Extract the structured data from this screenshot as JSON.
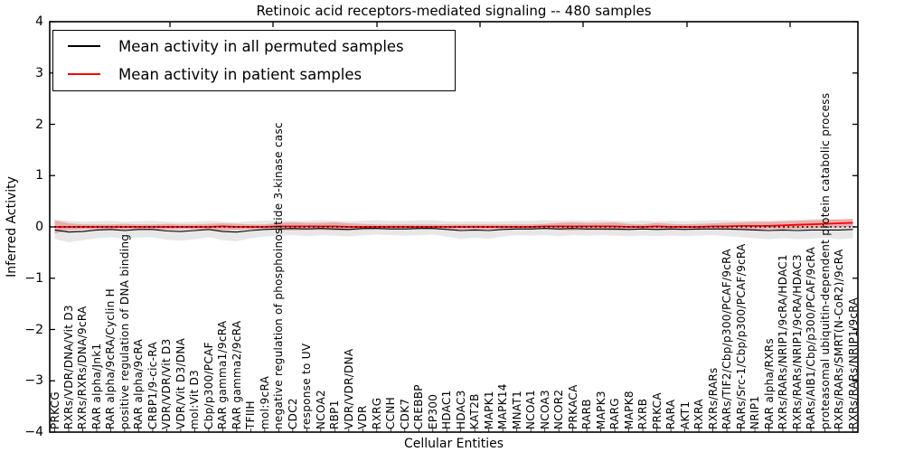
{
  "figure": {
    "title": "Retinoic acid receptors-mediated signaling -- 480 samples",
    "xlabel": "Cellular Entities",
    "ylabel": "Inferred Activity"
  },
  "legend": {
    "entries": [
      {
        "label": "Mean activity in all permuted samples",
        "color": "#000000"
      },
      {
        "label": "Mean activity in patient samples",
        "color": "#ff0000"
      }
    ]
  },
  "chart_data": {
    "type": "line",
    "title": "Retinoic acid receptors-mediated signaling -- 480 samples",
    "xlabel": "Cellular Entities",
    "ylabel": "Inferred Activity",
    "ylim": [
      -4,
      4
    ],
    "yticks": [
      4,
      3,
      2,
      1,
      0,
      -1,
      -2,
      -3,
      -4
    ],
    "yticklabels": [
      "4",
      "3",
      "2",
      "1",
      "0",
      "−1",
      "−2",
      "−3",
      "−4"
    ],
    "grid": false,
    "legend_position": "upper left",
    "reference_line": {
      "y": 0,
      "style": "dotted",
      "color": "#000000"
    },
    "categories": [
      "PRKCG",
      "RXRs/VDR/DNA/Vit D3",
      "RXRs/RXRs/DNA/9cRA",
      "RAR alpha/Jnk1",
      "RAR alpha/9cRA/Cyclin H",
      "positive regulation of DNA binding",
      "RAR alpha/9cRA",
      "CRBP1/9-cic-RA",
      "VDR/VDR/Vit D3",
      "VDR/Vit D3/DNA",
      "mol:Vit D3",
      "Cbp/p300/PCAF",
      "RAR gamma1/9cRA",
      "RAR gamma2/9cRA",
      "TFIIH",
      "mol:9cRA",
      "negative regulation of phosphoinositide 3-kinase casc",
      "CDC2",
      "response to UV",
      "NCOA2",
      "RBP1",
      "VDR/VDR/DNA",
      "VDR",
      "RXRG",
      "CCNH",
      "CDK7",
      "CREBBP",
      "EP300",
      "HDAC1",
      "HDAC3",
      "KAT2B",
      "MAPK1",
      "MAPK14",
      "MNAT1",
      "NCOA1",
      "NCOA3",
      "NCOR2",
      "PRKACA",
      "RARB",
      "MAPK3",
      "RARG",
      "MAPK8",
      "RXRB",
      "PRKCA",
      "RARA",
      "AKT1",
      "RXRA",
      "RXRs/RARs",
      "RARs/TIF2/Cbp/p300/PCAF/9cRA",
      "RARs/Src-1/Cbp/p300/PCAF/9cRA",
      "NRIP1",
      "RAR alpha/RXRs",
      "RXRs/RARs/NRIP1/9cRA/HDAC1",
      "RXRs/RARs/NRIP1/9cRA/HDAC3",
      "RARs/AIB1/Cbp/p300/PCAF/9cRA",
      "proteasomal ubiquitin-dependent protein catabolic process",
      "RXRs/RARs/SMRT(N-CoR2)/9cRA",
      "RXRs/RARs/NRIP1/9cRA"
    ],
    "series": [
      {
        "name": "Mean activity in all permuted samples",
        "color": "#000000",
        "style": "solid",
        "values": [
          -0.06,
          -0.1,
          -0.09,
          -0.06,
          -0.05,
          -0.07,
          -0.05,
          -0.05,
          -0.08,
          -0.09,
          -0.07,
          -0.05,
          -0.09,
          -0.1,
          -0.07,
          -0.05,
          -0.04,
          -0.03,
          -0.04,
          -0.03,
          -0.04,
          -0.05,
          -0.03,
          -0.03,
          -0.04,
          -0.04,
          -0.03,
          -0.03,
          -0.05,
          -0.07,
          -0.06,
          -0.07,
          -0.05,
          -0.04,
          -0.04,
          -0.03,
          -0.04,
          -0.03,
          -0.04,
          -0.04,
          -0.04,
          -0.05,
          -0.04,
          -0.05,
          -0.04,
          -0.05,
          -0.04,
          -0.04,
          -0.04,
          -0.05,
          -0.06,
          -0.07,
          -0.06,
          -0.07,
          -0.06,
          -0.06,
          -0.06,
          -0.05
        ]
      },
      {
        "name": "Mean activity in patient samples",
        "color": "#ff0000",
        "style": "solid",
        "values": [
          0.0,
          0.0,
          0.0,
          0.0,
          0.0,
          0.0,
          0.0,
          0.0,
          0.0,
          0.0,
          0.0,
          0.0,
          0.01,
          0.0,
          0.0,
          0.0,
          0.01,
          0.01,
          0.01,
          0.01,
          0.01,
          0.0,
          0.0,
          0.0,
          0.0,
          0.0,
          0.0,
          0.0,
          0.0,
          0.0,
          0.0,
          0.0,
          0.0,
          0.0,
          0.0,
          0.01,
          0.01,
          0.01,
          0.01,
          0.01,
          0.01,
          0.0,
          0.0,
          0.01,
          0.0,
          0.0,
          0.0,
          0.01,
          0.01,
          0.02,
          0.02,
          0.02,
          0.03,
          0.04,
          0.05,
          0.06,
          0.07,
          0.08
        ]
      }
    ],
    "bands": [
      {
        "name": "permuted samples spread",
        "color": "#aaaaaa",
        "upper": [
          0.14,
          0.12,
          0.1,
          0.11,
          0.12,
          0.1,
          0.11,
          0.12,
          0.1,
          0.09,
          0.1,
          0.12,
          0.1,
          0.09,
          0.11,
          0.12,
          0.13,
          0.12,
          0.12,
          0.13,
          0.12,
          0.11,
          0.12,
          0.13,
          0.12,
          0.12,
          0.13,
          0.13,
          0.11,
          0.1,
          0.11,
          0.1,
          0.11,
          0.12,
          0.12,
          0.13,
          0.12,
          0.13,
          0.12,
          0.13,
          0.12,
          0.11,
          0.12,
          0.11,
          0.12,
          0.11,
          0.12,
          0.13,
          0.13,
          0.12,
          0.12,
          0.11,
          0.13,
          0.14,
          0.15,
          0.16,
          0.14,
          0.13
        ],
        "lower": [
          -0.24,
          -0.3,
          -0.26,
          -0.22,
          -0.2,
          -0.23,
          -0.21,
          -0.2,
          -0.25,
          -0.27,
          -0.24,
          -0.2,
          -0.26,
          -0.28,
          -0.22,
          -0.19,
          -0.17,
          -0.16,
          -0.18,
          -0.16,
          -0.17,
          -0.19,
          -0.16,
          -0.15,
          -0.16,
          -0.17,
          -0.16,
          -0.15,
          -0.19,
          -0.23,
          -0.21,
          -0.23,
          -0.19,
          -0.16,
          -0.17,
          -0.16,
          -0.18,
          -0.16,
          -0.17,
          -0.16,
          -0.17,
          -0.18,
          -0.17,
          -0.18,
          -0.17,
          -0.18,
          -0.17,
          -0.16,
          -0.18,
          -0.2,
          -0.22,
          -0.24,
          -0.22,
          -0.24,
          -0.23,
          -0.21,
          -0.24,
          -0.22
        ]
      },
      {
        "name": "patient samples spread",
        "color": "#e86060",
        "upper": [
          0.13,
          0.07,
          0.05,
          0.05,
          0.05,
          0.06,
          0.05,
          0.05,
          0.06,
          0.05,
          0.05,
          0.06,
          0.07,
          0.06,
          0.05,
          0.05,
          0.08,
          0.09,
          0.08,
          0.08,
          0.09,
          0.07,
          0.06,
          0.05,
          0.05,
          0.05,
          0.05,
          0.05,
          0.05,
          0.05,
          0.05,
          0.05,
          0.05,
          0.05,
          0.05,
          0.06,
          0.08,
          0.09,
          0.08,
          0.08,
          0.09,
          0.06,
          0.05,
          0.08,
          0.06,
          0.05,
          0.06,
          0.07,
          0.08,
          0.09,
          0.1,
          0.1,
          0.11,
          0.12,
          0.13,
          0.14,
          0.15,
          0.16
        ],
        "lower": [
          -0.13,
          -0.07,
          -0.05,
          -0.05,
          -0.05,
          -0.06,
          -0.05,
          -0.05,
          -0.06,
          -0.05,
          -0.05,
          -0.06,
          -0.07,
          -0.06,
          -0.05,
          -0.05,
          -0.06,
          -0.07,
          -0.06,
          -0.06,
          -0.07,
          -0.07,
          -0.06,
          -0.05,
          -0.05,
          -0.05,
          -0.05,
          -0.05,
          -0.05,
          -0.05,
          -0.05,
          -0.05,
          -0.05,
          -0.05,
          -0.05,
          -0.04,
          -0.06,
          -0.07,
          -0.06,
          -0.06,
          -0.07,
          -0.06,
          -0.05,
          -0.06,
          -0.06,
          -0.05,
          -0.06,
          -0.05,
          -0.06,
          -0.05,
          -0.06,
          -0.04,
          -0.05,
          -0.04,
          -0.03,
          -0.02,
          -0.01,
          0.0
        ]
      }
    ]
  }
}
